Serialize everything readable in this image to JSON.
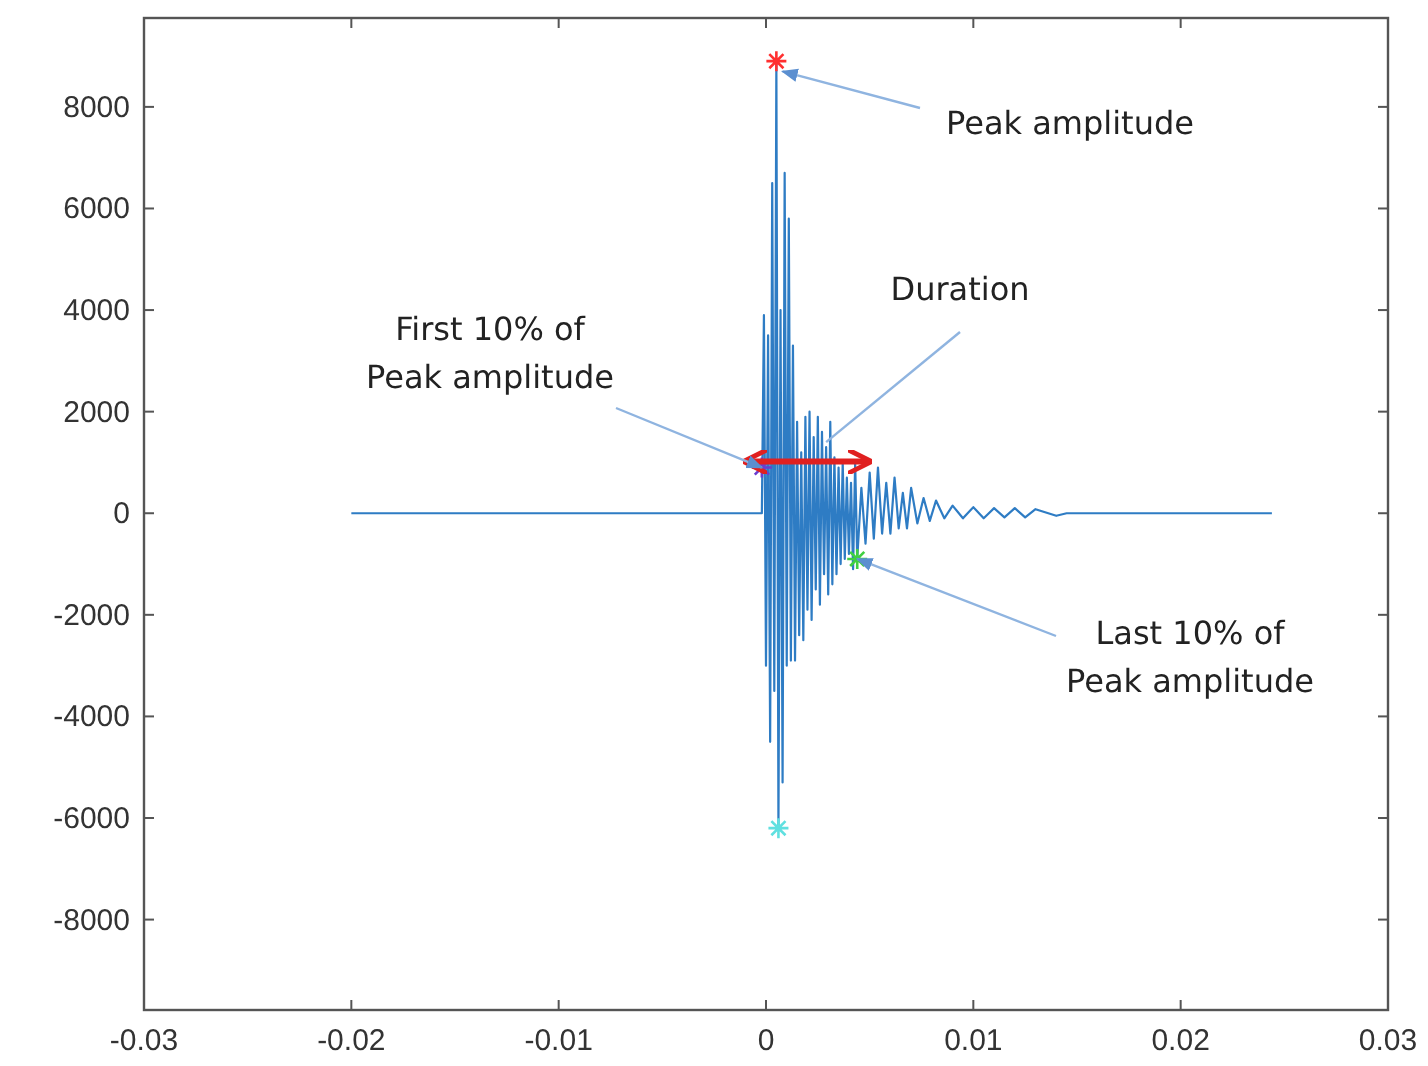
{
  "chart_data": {
    "type": "line",
    "xlim": [
      -0.03,
      0.03
    ],
    "ylim": [
      -9780,
      9750
    ],
    "xticks": [
      -0.03,
      -0.02,
      -0.01,
      0,
      0.01,
      0.02,
      0.03
    ],
    "yticks": [
      -8000,
      -6000,
      -4000,
      -2000,
      0,
      2000,
      4000,
      6000,
      8000
    ],
    "grid": false,
    "line_style": "solid",
    "series": [
      {
        "color": "#2e7cc4",
        "x": [
          -0.02,
          -0.0002,
          -0.0001,
          0,
          0.0001,
          0.0002,
          0.0003,
          0.0004,
          0.0005,
          0.0006,
          0.0007,
          0.0008,
          0.0009,
          0.001,
          0.0011,
          0.0012,
          0.0013,
          0.0014,
          0.0015,
          0.0016,
          0.0017,
          0.0018,
          0.0019,
          0.002,
          0.0021,
          0.0022,
          0.0023,
          0.0024,
          0.0025,
          0.0026,
          0.0027,
          0.0028,
          0.0029,
          0.003,
          0.0031,
          0.0032,
          0.0033,
          0.0034,
          0.0035,
          0.0036,
          0.0037,
          0.0038,
          0.0039,
          0.004,
          0.0041,
          0.0042,
          0.0043,
          0.0044,
          0.0046,
          0.0048,
          0.005,
          0.0052,
          0.0054,
          0.0056,
          0.0058,
          0.006,
          0.0062,
          0.0064,
          0.0066,
          0.0068,
          0.007,
          0.0073,
          0.0076,
          0.0079,
          0.0082,
          0.0086,
          0.009,
          0.0095,
          0.01,
          0.0105,
          0.011,
          0.0115,
          0.012,
          0.0125,
          0.013,
          0.014,
          0.0145,
          0.0244
        ],
        "values": [
          0,
          0,
          3900,
          -3000,
          3500,
          -4500,
          6500,
          -3500,
          8900,
          -6200,
          4000,
          -5300,
          6700,
          -3000,
          5800,
          -2900,
          3300,
          -2900,
          1800,
          -2400,
          1200,
          -2500,
          1900,
          -1900,
          2000,
          -2100,
          1500,
          -1500,
          1900,
          -1800,
          1600,
          -1200,
          1300,
          -1600,
          1800,
          -1400,
          1100,
          -1200,
          900,
          -1000,
          1000,
          -900,
          700,
          -800,
          600,
          -1100,
          1000,
          -900,
          500,
          -600,
          800,
          -500,
          900,
          -400,
          600,
          -400,
          700,
          -300,
          400,
          -300,
          500,
          -200,
          300,
          -150,
          250,
          -100,
          150,
          -100,
          120,
          -100,
          100,
          -80,
          100,
          -80,
          80,
          -50,
          0,
          0
        ]
      },
      {
        "type": "scatter",
        "color": "#ff3030",
        "marker": "cross",
        "x": [
          0.0005
        ],
        "values": [
          8900
        ]
      },
      {
        "type": "scatter",
        "color": "#6a3dd0",
        "marker": "cross",
        "x": [
          -0.0002
        ],
        "values": [
          900
        ]
      },
      {
        "type": "scatter",
        "color": "#40d040",
        "marker": "cross",
        "x": [
          0.0044
        ],
        "values": [
          -900
        ]
      },
      {
        "type": "scatter",
        "color": "#60e0e0",
        "marker": "cross",
        "x": [
          0.0006
        ],
        "values": [
          -6200
        ]
      }
    ],
    "annotations": [
      {
        "text": "Peak amplitude",
        "x": 0.0008,
        "y": 8700
      },
      {
        "text": "First 10% of\nPeak amplitude",
        "x": -0.0002,
        "y": 900
      },
      {
        "text": "Duration",
        "x": 0.0029,
        "y": 1400
      },
      {
        "text": "Last 10% of\nPeak amplitude",
        "x": 0.0044,
        "y": -900
      }
    ]
  }
}
